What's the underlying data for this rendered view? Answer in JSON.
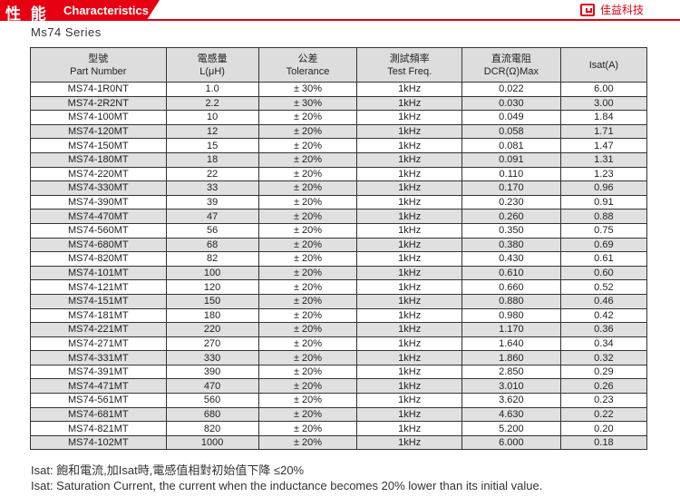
{
  "header": {
    "title_zh": "性 能",
    "title_en": "Characteristics",
    "brand": "佳益科技",
    "brand_color": "#e60012"
  },
  "series": "Ms74  Series",
  "table": {
    "headers": [
      {
        "zh": "型號",
        "en": "Part Number"
      },
      {
        "zh": "電感量",
        "en": "L(μH)"
      },
      {
        "zh": "公差",
        "en": "Tolerance"
      },
      {
        "zh": "測試頻率",
        "en": "Test Freq."
      },
      {
        "zh": "直流電阻",
        "en": "DCR(Ω)Max"
      },
      {
        "zh": "",
        "en": "Isat(A)"
      }
    ],
    "rows": [
      [
        "MS74-1R0NT",
        "1.0",
        "± 30%",
        "1kHz",
        "0.022",
        "6.00"
      ],
      [
        "MS74-2R2NT",
        "2.2",
        "± 30%",
        "1kHz",
        "0.030",
        "3.00"
      ],
      [
        "MS74-100MT",
        "10",
        "± 20%",
        "1kHz",
        "0.049",
        "1.84"
      ],
      [
        "MS74-120MT",
        "12",
        "± 20%",
        "1kHz",
        "0.058",
        "1.71"
      ],
      [
        "MS74-150MT",
        "15",
        "± 20%",
        "1kHz",
        "0.081",
        "1.47"
      ],
      [
        "MS74-180MT",
        "18",
        "± 20%",
        "1kHz",
        "0.091",
        "1.31"
      ],
      [
        "MS74-220MT",
        "22",
        "± 20%",
        "1kHz",
        "0.110",
        "1.23"
      ],
      [
        "MS74-330MT",
        "33",
        "± 20%",
        "1kHz",
        "0.170",
        "0.96"
      ],
      [
        "MS74-390MT",
        "39",
        "± 20%",
        "1kHz",
        "0.230",
        "0.91"
      ],
      [
        "MS74-470MT",
        "47",
        "± 20%",
        "1kHz",
        "0.260",
        "0.88"
      ],
      [
        "MS74-560MT",
        "56",
        "± 20%",
        "1kHz",
        "0.350",
        "0.75"
      ],
      [
        "MS74-680MT",
        "68",
        "± 20%",
        "1kHz",
        "0.380",
        "0.69"
      ],
      [
        "MS74-820MT",
        "82",
        "± 20%",
        "1kHz",
        "0.430",
        "0.61"
      ],
      [
        "MS74-101MT",
        "100",
        "± 20%",
        "1kHz",
        "0.610",
        "0.60"
      ],
      [
        "MS74-121MT",
        "120",
        "± 20%",
        "1kHz",
        "0.660",
        "0.52"
      ],
      [
        "MS74-151MT",
        "150",
        "± 20%",
        "1kHz",
        "0.880",
        "0.46"
      ],
      [
        "MS74-181MT",
        "180",
        "± 20%",
        "1kHz",
        "0.980",
        "0.42"
      ],
      [
        "MS74-221MT",
        "220",
        "± 20%",
        "1kHz",
        "1.170",
        "0.36"
      ],
      [
        "MS74-271MT",
        "270",
        "± 20%",
        "1kHz",
        "1.640",
        "0.34"
      ],
      [
        "MS74-331MT",
        "330",
        "± 20%",
        "1kHz",
        "1.860",
        "0.32"
      ],
      [
        "MS74-391MT",
        "390",
        "± 20%",
        "1kHz",
        "2.850",
        "0.29"
      ],
      [
        "MS74-471MT",
        "470",
        "± 20%",
        "1kHz",
        "3.010",
        "0.26"
      ],
      [
        "MS74-561MT",
        "560",
        "± 20%",
        "1kHz",
        "3.620",
        "0.23"
      ],
      [
        "MS74-681MT",
        "680",
        "± 20%",
        "1kHz",
        "4.630",
        "0.22"
      ],
      [
        "MS74-821MT",
        "820",
        "± 20%",
        "1kHz",
        "5.200",
        "0.20"
      ],
      [
        "MS74-102MT",
        "1000",
        "± 20%",
        "1kHz",
        "6.000",
        "0.18"
      ]
    ]
  },
  "notes": {
    "zh": "Isat: 飽和電流,加Isat時,電感值相對初始值下降 ≤20%",
    "en": "Isat: Saturation Current, the current when the inductance becomes 20% lower than its initial value."
  }
}
